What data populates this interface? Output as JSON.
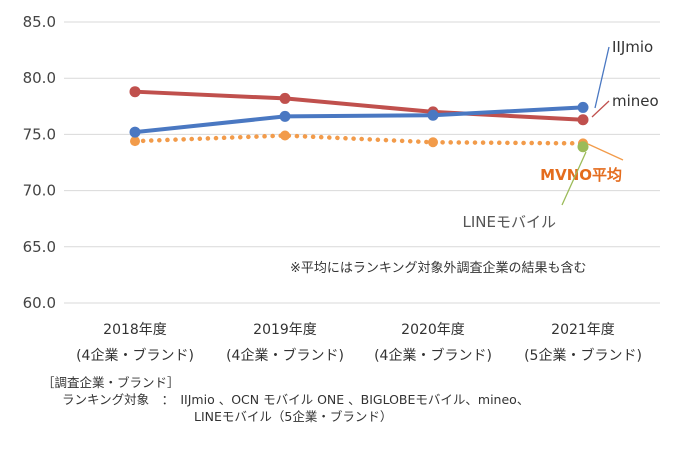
{
  "chart_data": {
    "type": "line",
    "categories": [
      "2018年度",
      "2019年度",
      "2020年度",
      "2021年度"
    ],
    "category_sublabels": [
      "(4企業・ブランド)",
      "(4企業・ブランド)",
      "(4企業・ブランド)",
      "(5企業・ブランド)"
    ],
    "ylim": [
      60,
      85
    ],
    "yticks": [
      "85.0",
      "80.0",
      "75.0",
      "70.0",
      "65.0",
      "60.0"
    ],
    "grid": true,
    "series": [
      {
        "name": "IIJmio",
        "values": [
          75.2,
          76.6,
          76.7,
          77.4
        ],
        "color": "#4a78c2",
        "style": "solid"
      },
      {
        "name": "mineo",
        "values": [
          78.8,
          78.2,
          77.0,
          76.3
        ],
        "color": "#c0504d",
        "style": "solid"
      },
      {
        "name": "MVNO平均",
        "values": [
          74.4,
          74.9,
          74.3,
          74.2
        ],
        "color": "#f29b4a",
        "style": "dotted"
      },
      {
        "name": "LINEモバイル",
        "values": [
          null,
          null,
          null,
          73.9
        ],
        "color": "#9bbb59",
        "style": "point"
      }
    ],
    "annotation": "※平均にはランキング対象外調査企業の結果も含む"
  },
  "caption": {
    "line1": "［調査企業・ブランド］",
    "line2": "ランキング対象　：　IIJmio 、OCN モバイル ONE 、BIGLOBEモバイル、mineo、",
    "line3": "LINEモバイル（5企業・ブランド）"
  }
}
